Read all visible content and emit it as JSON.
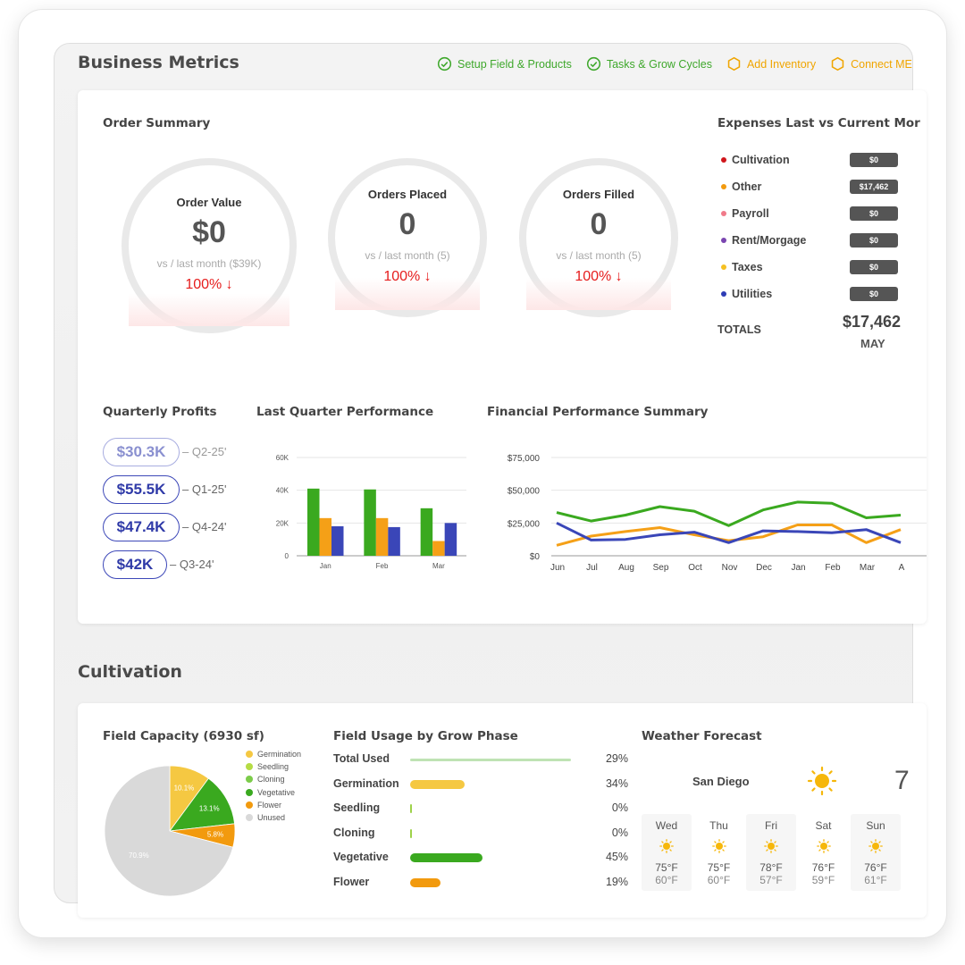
{
  "header": {
    "title": "Business Metrics",
    "steps": [
      {
        "label": "Setup Field & Products",
        "status": "done"
      },
      {
        "label": "Tasks & Grow Cycles",
        "status": "done"
      },
      {
        "label": "Add Inventory",
        "status": "pending"
      },
      {
        "label": "Connect ME",
        "status": "pending"
      }
    ]
  },
  "order_summary": {
    "title": "Order Summary",
    "cards": [
      {
        "label": "Order Value",
        "value": "$0",
        "sub": "vs / last month ($39K)",
        "change": "100% ↓"
      },
      {
        "label": "Orders Placed",
        "value": "0",
        "sub": "vs / last month (5)",
        "change": "100% ↓"
      },
      {
        "label": "Orders Filled",
        "value": "0",
        "sub": "vs / last month (5)",
        "change": "100% ↓"
      }
    ]
  },
  "expenses": {
    "title": "Expenses Last vs Current Mor",
    "items": [
      {
        "label": "Cultivation",
        "amount": "$0",
        "color": "#d0161b"
      },
      {
        "label": "Other",
        "amount": "$17,462",
        "color": "#f29a0e"
      },
      {
        "label": "Payroll",
        "amount": "$0",
        "color": "#f07a8a"
      },
      {
        "label": "Rent/Morgage",
        "amount": "$0",
        "color": "#7a45b0"
      },
      {
        "label": "Taxes",
        "amount": "$0",
        "color": "#f5c022"
      },
      {
        "label": "Utilities",
        "amount": "$0",
        "color": "#2e3db5"
      }
    ],
    "totals_label": "TOTALS",
    "total_value": "$17,462",
    "total_month": "MAY"
  },
  "quarterly_profits": {
    "title": "Quarterly Profits",
    "items": [
      {
        "value": "$30.3K",
        "quarter": "– Q2-25'",
        "faded": true
      },
      {
        "value": "$55.5K",
        "quarter": "– Q1-25'",
        "faded": false
      },
      {
        "value": "$47.4K",
        "quarter": "– Q4-24'",
        "faded": false
      },
      {
        "value": "$42K",
        "quarter": "– Q3-24'",
        "faded": false
      }
    ]
  },
  "cultivation": {
    "title": "Cultivation",
    "field_capacity_title": "Field Capacity (6930 sf)",
    "field_usage_title": "Field Usage by Grow Phase",
    "usage": [
      {
        "label": "Total Used",
        "percent": "29%",
        "fill": 1.0,
        "color": "#bfe3b4",
        "thin": true
      },
      {
        "label": "Germination",
        "percent": "34%",
        "fill": 0.34,
        "color": "#f5c842"
      },
      {
        "label": "Seedling",
        "percent": "0%",
        "fill": 0.0,
        "color": "#9ed24a"
      },
      {
        "label": "Cloning",
        "percent": "0%",
        "fill": 0.0,
        "color": "#9ed24a"
      },
      {
        "label": "Vegetative",
        "percent": "45%",
        "fill": 0.45,
        "color": "#3aa91f"
      },
      {
        "label": "Flower",
        "percent": "19%",
        "fill": 0.19,
        "color": "#f29a0e"
      }
    ],
    "weather": {
      "title": "Weather Forecast",
      "city": "San Diego",
      "current_temp": "7",
      "days": [
        {
          "day": "Wed",
          "high": "75°F",
          "low": "60°F"
        },
        {
          "day": "Thu",
          "high": "75°F",
          "low": "60°F"
        },
        {
          "day": "Fri",
          "high": "78°F",
          "low": "57°F"
        },
        {
          "day": "Sat",
          "high": "76°F",
          "low": "59°F"
        },
        {
          "day": "Sun",
          "high": "76°F",
          "low": "61°F"
        }
      ]
    }
  },
  "chart_data": [
    {
      "type": "bar",
      "title": "Last Quarter Performance",
      "categories": [
        "Jan",
        "Feb",
        "Mar"
      ],
      "series": [
        {
          "values": [
            41000,
            40500,
            29000
          ],
          "color": "#3aa91f"
        },
        {
          "values": [
            23000,
            23000,
            9000
          ],
          "color": "#f5a017"
        },
        {
          "values": [
            18000,
            17500,
            20000
          ],
          "color": "#3a46b8"
        }
      ],
      "ylim": [
        0,
        60000
      ],
      "yticks": [
        "0",
        "20K",
        "40K",
        "60K"
      ],
      "grid": true
    },
    {
      "type": "line",
      "title": "Financial Performance Summary",
      "x": [
        "Jun",
        "Jul",
        "Aug",
        "Sep",
        "Oct",
        "Nov",
        "Dec",
        "Jan",
        "Feb",
        "Mar",
        "A"
      ],
      "series": [
        {
          "values": [
            33000,
            26500,
            31000,
            37500,
            34000,
            23000,
            35000,
            41000,
            40000,
            29000,
            31000
          ],
          "color": "#3aa91f"
        },
        {
          "values": [
            8000,
            15000,
            18500,
            21500,
            16000,
            11500,
            14500,
            23500,
            23500,
            10000,
            20000
          ],
          "color": "#f5a017"
        },
        {
          "values": [
            25000,
            12000,
            12500,
            16000,
            18000,
            10000,
            19000,
            18500,
            17500,
            20000,
            10000
          ],
          "color": "#3a46b8"
        }
      ],
      "ylim": [
        0,
        75000
      ],
      "yticks": [
        "$0",
        "$25,000",
        "$50,000",
        "$75,000"
      ],
      "grid": true
    },
    {
      "type": "pie",
      "title": "Field Capacity (6930 sf)",
      "slices": [
        {
          "label": "Germination",
          "value": 10.1,
          "color": "#f5c842",
          "text": "10.1%"
        },
        {
          "label": "Seedling",
          "value": 0,
          "color": "#b5dc45",
          "text": ""
        },
        {
          "label": "Cloning",
          "value": 0,
          "color": "#7ccc4a",
          "text": ""
        },
        {
          "label": "Vegetative",
          "value": 13.1,
          "color": "#3aa91f",
          "text": "13.1%"
        },
        {
          "label": "Flower",
          "value": 5.8,
          "color": "#f29a0e",
          "text": "5.8%"
        },
        {
          "label": "Unused",
          "value": 70.9,
          "color": "#d9d9d9",
          "text": "70.9%"
        }
      ]
    }
  ]
}
